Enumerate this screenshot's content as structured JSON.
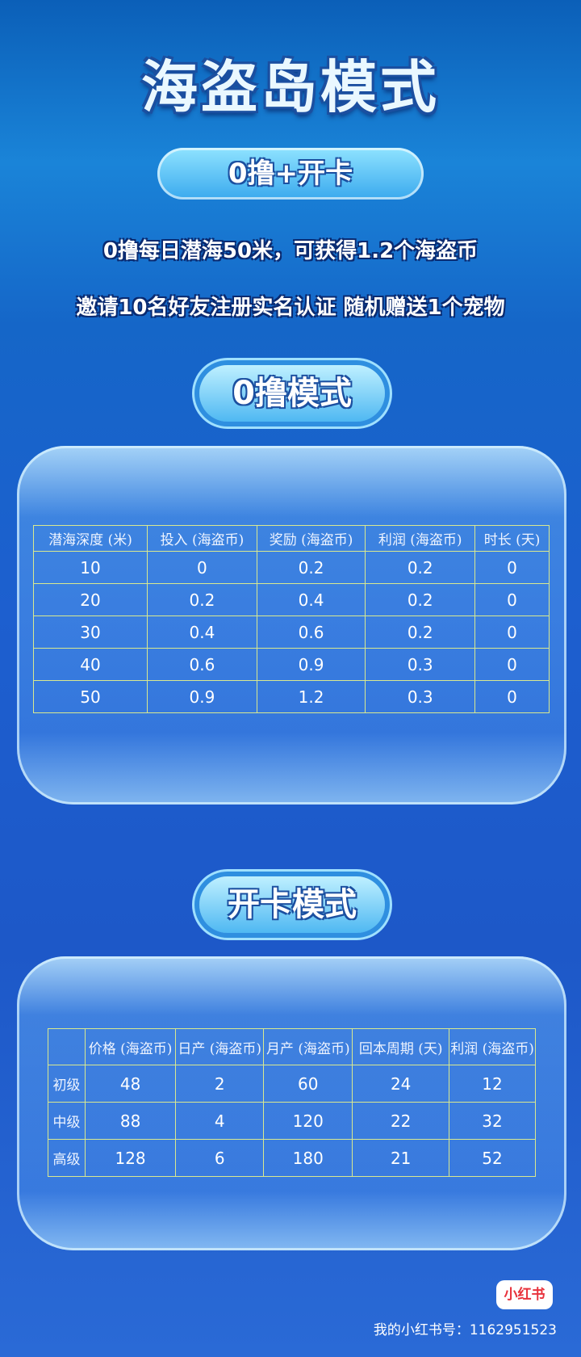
{
  "header": {
    "title": "海盗岛模式",
    "badge": "0撸+开卡",
    "lines": [
      "0撸每日潜海50米，可获得1.2个海盗币",
      "邀请10名好友注册实名认证 随机赠送1个宠物"
    ]
  },
  "sections": [
    {
      "title": "0撸模式",
      "table": {
        "columns": [
          "潜海深度 (米)",
          "投入 (海盗币)",
          "奖励 (海盗币)",
          "利润 (海盗币)",
          "时长 (天)"
        ],
        "rows": [
          [
            "10",
            "0",
            "0.2",
            "0.2",
            "0"
          ],
          [
            "20",
            "0.2",
            "0.4",
            "0.2",
            "0"
          ],
          [
            "30",
            "0.4",
            "0.6",
            "0.2",
            "0"
          ],
          [
            "40",
            "0.6",
            "0.9",
            "0.3",
            "0"
          ],
          [
            "50",
            "0.9",
            "1.2",
            "0.3",
            "0"
          ]
        ]
      }
    },
    {
      "title": "开卡模式",
      "table": {
        "columns": [
          "价格 (海盗币)",
          "日产 (海盗币)",
          "月产 (海盗币)",
          "回本周期 (天)",
          "利润 (海盗币)"
        ],
        "rows": [
          [
            "初级",
            "48",
            "2",
            "60",
            "24",
            "12"
          ],
          [
            "中级",
            "88",
            "4",
            "120",
            "22",
            "32"
          ],
          [
            "高级",
            "128",
            "6",
            "180",
            "21",
            "52"
          ]
        ]
      }
    }
  ],
  "footer": {
    "logo": "小红书",
    "account": "我的小红书号：1162951523"
  }
}
